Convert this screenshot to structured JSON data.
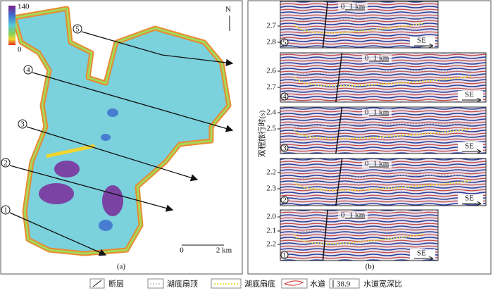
{
  "map": {
    "colorbar": {
      "max": "140",
      "min": "0"
    },
    "north": "N",
    "lines": [
      "1",
      "2",
      "3",
      "4",
      "5"
    ],
    "scale": {
      "start": "0",
      "end": "2 km"
    },
    "label": "(a)"
  },
  "sections": {
    "y_axis_label": "双程旅行时(s)",
    "label": "(b)",
    "panels": [
      {
        "id": "5",
        "ticks": [
          "2.7",
          "2.8"
        ],
        "scale": {
          "start": "0",
          "end": "1 km"
        },
        "direction": "SE"
      },
      {
        "id": "4",
        "ticks": [
          "2.6",
          "2.7"
        ],
        "scale": {
          "start": "0",
          "end": "1 km"
        },
        "direction": "SE"
      },
      {
        "id": "3",
        "ticks": [
          "2.4",
          "2.5"
        ],
        "scale": {
          "start": "0",
          "end": "1 km"
        },
        "direction": "SE"
      },
      {
        "id": "2",
        "ticks": [
          "2.2",
          "2.3"
        ],
        "scale": {
          "start": "0",
          "end": "1 km"
        },
        "direction": "SE"
      },
      {
        "id": "1",
        "ticks": [
          "2.0",
          "2.1",
          "2.2"
        ],
        "scale": {
          "start": "0",
          "end": "1 km"
        },
        "direction": "SE"
      }
    ]
  },
  "legend": {
    "fault": "断层",
    "fan_top": "湖底扇顶",
    "fan_bottom": "湖底扇底",
    "channel": "水道",
    "ratio_example": "38.9",
    "ratio": "水道宽深比"
  }
}
